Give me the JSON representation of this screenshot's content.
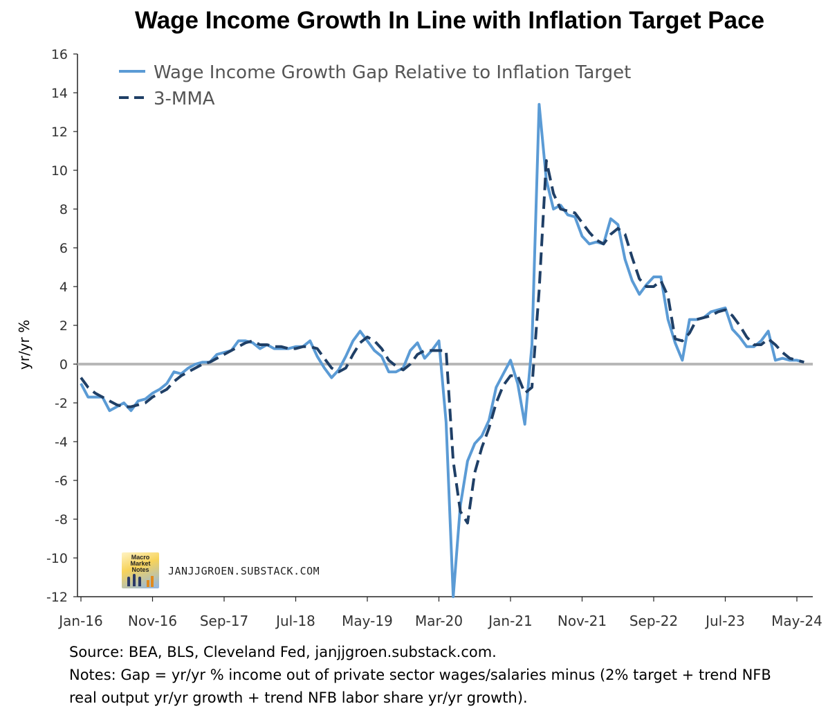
{
  "chart_data": {
    "type": "line",
    "title": "Wage Income Growth In Line with Inflation Target Pace",
    "xlabel": "",
    "ylabel": "yr/yr %",
    "ylim": [
      -12,
      16
    ],
    "yticks": [
      -12,
      -10,
      -8,
      -6,
      -4,
      -2,
      0,
      2,
      4,
      6,
      8,
      10,
      12,
      14,
      16
    ],
    "xtick_labels": [
      "Jan-16",
      "Nov-16",
      "Sep-17",
      "Jul-18",
      "May-19",
      "Mar-20",
      "Jan-21",
      "Nov-21",
      "Sep-22",
      "Jul-23",
      "May-24"
    ],
    "xtick_month_index": [
      0,
      10,
      20,
      30,
      40,
      50,
      60,
      70,
      80,
      90,
      100
    ],
    "x_start": "Jan-16",
    "grid": false,
    "zero_line": true,
    "legend_position": "top-left",
    "series": [
      {
        "name": "Wage Income Growth Gap Relative to Inflation Target",
        "style": "solid",
        "color": "#5b9bd5",
        "values": [
          -1.0,
          -1.7,
          -1.7,
          -1.7,
          -2.4,
          -2.2,
          -2.0,
          -2.4,
          -1.9,
          -1.8,
          -1.5,
          -1.3,
          -1.0,
          -0.4,
          -0.5,
          -0.2,
          0.0,
          0.1,
          0.1,
          0.5,
          0.6,
          0.7,
          1.2,
          1.2,
          1.1,
          0.8,
          1.0,
          0.8,
          0.8,
          0.8,
          0.9,
          0.9,
          1.2,
          0.4,
          -0.2,
          -0.7,
          -0.3,
          0.4,
          1.2,
          1.7,
          1.2,
          0.7,
          0.4,
          -0.4,
          -0.4,
          -0.2,
          0.7,
          1.1,
          0.3,
          0.7,
          1.2,
          -3.0,
          -12.0,
          -7.3,
          -5.0,
          -4.1,
          -3.7,
          -2.9,
          -1.2,
          -0.5,
          0.2,
          -1.0,
          -3.1,
          1.0,
          13.4,
          9.5,
          8.0,
          8.2,
          7.7,
          7.6,
          6.6,
          6.2,
          6.3,
          6.2,
          7.5,
          7.2,
          5.4,
          4.3,
          3.6,
          4.1,
          4.5,
          4.5,
          2.3,
          1.1,
          0.2,
          2.3,
          2.3,
          2.4,
          2.7,
          2.8,
          2.9,
          1.8,
          1.4,
          0.9,
          0.9,
          1.2,
          1.7,
          0.2,
          0.3,
          0.2,
          0.2,
          0.1
        ]
      },
      {
        "name": "3-MMA",
        "style": "dashed",
        "color": "#1f3f66",
        "values": [
          -0.7,
          -1.2,
          -1.5,
          -1.7,
          -1.9,
          -2.1,
          -2.2,
          -2.2,
          -2.1,
          -2.0,
          -1.7,
          -1.5,
          -1.3,
          -0.9,
          -0.6,
          -0.4,
          -0.2,
          0.0,
          0.1,
          0.3,
          0.5,
          0.7,
          0.9,
          1.1,
          1.2,
          1.0,
          1.0,
          0.9,
          0.9,
          0.8,
          0.8,
          0.9,
          0.9,
          0.8,
          0.3,
          -0.2,
          -0.4,
          -0.2,
          0.5,
          1.1,
          1.4,
          1.2,
          0.8,
          0.2,
          -0.1,
          -0.3,
          0.0,
          0.5,
          0.7,
          0.7,
          0.7,
          0.7,
          -5.0,
          -7.6,
          -8.2,
          -5.6,
          -4.3,
          -3.3,
          -2.0,
          -1.1,
          -0.6,
          -0.6,
          -1.5,
          -1.2,
          3.8,
          10.5,
          8.8,
          8.0,
          7.9,
          7.8,
          7.3,
          6.8,
          6.4,
          6.2,
          6.7,
          7.0,
          6.7,
          5.5,
          4.4,
          4.0,
          4.0,
          4.3,
          3.5,
          1.3,
          1.2,
          1.6,
          2.3,
          2.4,
          2.5,
          2.7,
          2.8,
          2.5,
          2.0,
          1.4,
          1.0,
          1.0,
          1.3,
          1.0,
          0.6,
          0.3,
          0.2,
          0.1
        ]
      }
    ]
  },
  "watermark": {
    "logo_text": "Macro Market Notes",
    "site": "JANJJGROEN.SUBSTACK.COM"
  },
  "notes": {
    "source": "Source: BEA, BLS, Cleveland Fed, janjjgroen.substack.com.",
    "notes_line1": "Notes: Gap = yr/yr % income out of private sector wages/salaries minus (2% target + trend NFB",
    "notes_line2": "real output yr/yr growth + trend NFB labor share yr/yr growth)."
  }
}
